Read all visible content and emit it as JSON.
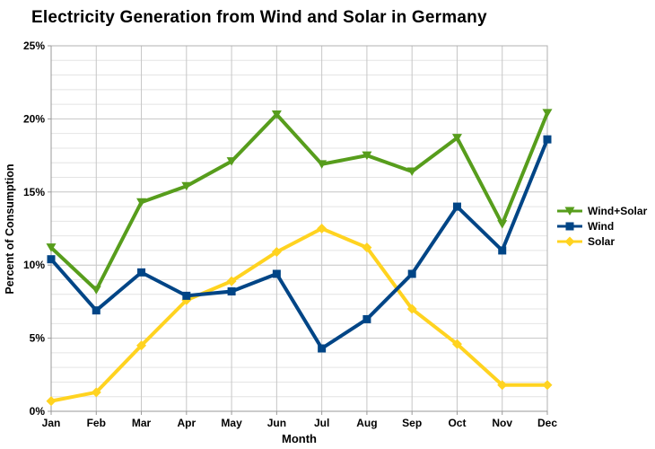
{
  "chart_data": {
    "type": "line",
    "title": "Electricity Generation from Wind and Solar in Germany",
    "xlabel": "Month",
    "ylabel": "Percent of Consumption",
    "categories": [
      "Jan",
      "Feb",
      "Mar",
      "Apr",
      "May",
      "Jun",
      "Jul",
      "Aug",
      "Sep",
      "Oct",
      "Nov",
      "Dec"
    ],
    "ylim": [
      0,
      25
    ],
    "y_major_step": 5,
    "y_minor_step": 1,
    "y_ticks": [
      0,
      5,
      10,
      15,
      20,
      25
    ],
    "y_tick_labels": [
      "0%",
      "5%",
      "10%",
      "15%",
      "20%",
      "25%"
    ],
    "grid": true,
    "legend_position": "right",
    "series": [
      {
        "name": "Wind+Solar",
        "color": "#579D1C",
        "marker": "triangle-down",
        "values": [
          11.2,
          8.3,
          14.3,
          15.4,
          17.1,
          20.3,
          16.9,
          17.5,
          16.4,
          18.7,
          12.8,
          20.4
        ]
      },
      {
        "name": "Wind",
        "color": "#004586",
        "marker": "square",
        "values": [
          10.4,
          6.9,
          9.5,
          7.9,
          8.2,
          9.4,
          4.3,
          6.3,
          9.4,
          14.0,
          11.0,
          18.6
        ]
      },
      {
        "name": "Solar",
        "color": "#FFD320",
        "marker": "diamond",
        "values": [
          0.7,
          1.3,
          4.5,
          7.6,
          8.9,
          10.9,
          12.5,
          11.2,
          7.0,
          4.6,
          1.8,
          1.8
        ]
      }
    ]
  },
  "style": {
    "background": "#ffffff",
    "text_color": "#000000",
    "major_grid": "#c6c6c6",
    "minor_grid": "#e4e4e4",
    "border": "#b0b0b0",
    "axis": "#999999",
    "line_width": 4
  }
}
